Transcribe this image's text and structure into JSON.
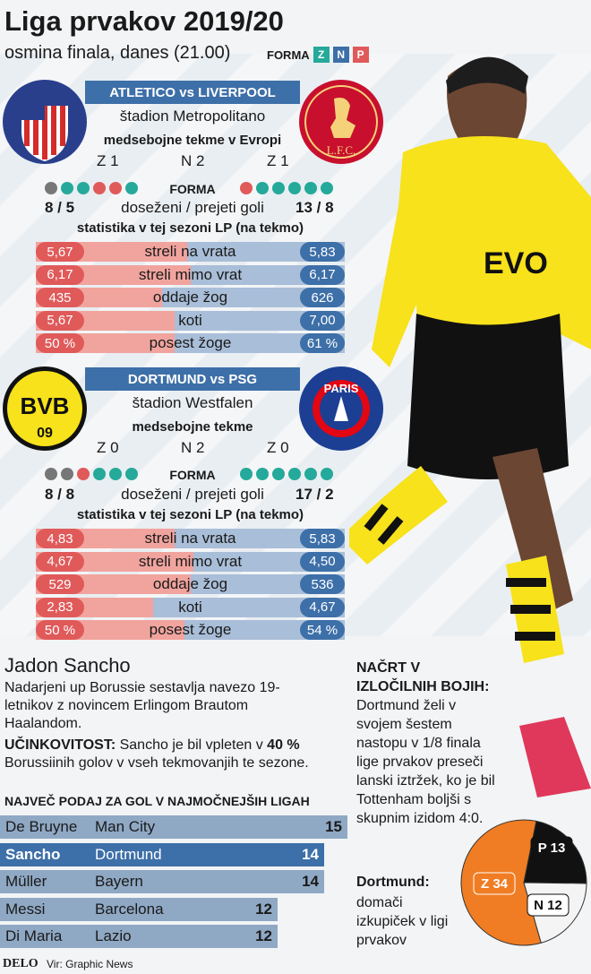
{
  "title": "Liga prvakov 2019/20",
  "subtitle": "osmina finala, danes (21.00)",
  "forma_key": {
    "label": "FORMA",
    "items": [
      "Z",
      "N",
      "P"
    ],
    "colors": [
      "#25a99a",
      "#3d6fa8",
      "#e05a5a"
    ]
  },
  "match1": {
    "header": "ATLETICO vs LIVERPOOL",
    "stadium": "štadion Metropolitano",
    "h2h_label": "medsebojne tekme v Evropi",
    "h2h": [
      "Z 1",
      "N 2",
      "Z 1"
    ],
    "forma_label": "FORMA",
    "left_form": [
      "gray",
      "green",
      "green",
      "red",
      "red",
      "green"
    ],
    "right_form": [
      "red",
      "green",
      "green",
      "green",
      "green",
      "green"
    ],
    "goals_left": "8 / 5",
    "goals_label": "doseženi / prejeti goli",
    "goals_right": "13 / 8",
    "stats_title": "statistika v tej sezoni LP (na tekmo)",
    "stats": [
      {
        "left": "5,67",
        "label": "streli na vrata",
        "right": "5,83",
        "lfrac": 0.49
      },
      {
        "left": "6,17",
        "label": "streli mimo vrat",
        "right": "6,17",
        "lfrac": 0.5
      },
      {
        "left": "435",
        "label": "oddaje žog",
        "right": "626",
        "lfrac": 0.41
      },
      {
        "left": "5,67",
        "label": "koti",
        "right": "7,00",
        "lfrac": 0.45
      },
      {
        "left": "50 %",
        "label": "posest žoge",
        "right": "61 %",
        "lfrac": 0.45
      }
    ]
  },
  "match2": {
    "header": "DORTMUND vs PSG",
    "stadium": "štadion Westfalen",
    "h2h_label": "medsebojne tekme",
    "h2h": [
      "Z 0",
      "N 2",
      "Z 0"
    ],
    "forma_label": "FORMA",
    "left_form": [
      "gray",
      "gray",
      "red",
      "green",
      "green",
      "green"
    ],
    "right_form": [
      "green",
      "green",
      "green",
      "green",
      "green",
      "green"
    ],
    "goals_left": "8 / 8",
    "goals_label": "doseženi / prejeti goli",
    "goals_right": "17 / 2",
    "stats_title": "statistika v tej sezoni LP (na tekmo)",
    "stats": [
      {
        "left": "4,83",
        "label": "streli na vrata",
        "right": "5,83",
        "lfrac": 0.45
      },
      {
        "left": "4,67",
        "label": "streli mimo vrat",
        "right": "4,50",
        "lfrac": 0.51
      },
      {
        "left": "529",
        "label": "oddaje žog",
        "right": "536",
        "lfrac": 0.5
      },
      {
        "left": "2,83",
        "label": "koti",
        "right": "4,67",
        "lfrac": 0.38
      },
      {
        "left": "50 %",
        "label": "posest žoge",
        "right": "54 %",
        "lfrac": 0.48
      }
    ]
  },
  "player": {
    "name": "Jadon Sancho",
    "intro": "Nadarjeni up Borussie sestavlja navezo 19-letnikov z novincem Erlingom Brautom Haalandom.",
    "eff_label": "UČINKOVITOST:",
    "eff_text_a": "Sancho je bil vpleten v",
    "eff_pct": "40 %",
    "eff_text_b": "Borussiinih golov v vseh tekmovanjih te sezone.",
    "rank_title": "NAJVEČ PODAJ ZA GOL V NAJMOČNEJŠIH LIGAH",
    "ranking": [
      {
        "name": "De Bruyne",
        "club": "Man City",
        "val": "15",
        "n": 15
      },
      {
        "name": "Sancho",
        "club": "Dortmund",
        "val": "14",
        "n": 14
      },
      {
        "name": "Müller",
        "club": "Bayern",
        "val": "14",
        "n": 14
      },
      {
        "name": "Messi",
        "club": "Barcelona",
        "val": "12",
        "n": 12
      },
      {
        "name": "Di Maria",
        "club": "Lazio",
        "val": "12",
        "n": 12
      }
    ]
  },
  "plan": {
    "label": "NAČRT V IZLOČILNIH BOJIH:",
    "text": "Dortmund želi v svojem šestem nastopu v 1/8 finala lige prvakov preseči lanski iztržek, ko je bil Tottenham boljši s skupnim izidom 4:0."
  },
  "dortmund_record": {
    "label": "Dortmund:",
    "text": "domači izkupiček v ligi prvakov",
    "slices": [
      {
        "label": "Z 34",
        "value": 34,
        "color": "#f07d23"
      },
      {
        "label": "P 13",
        "value": 13,
        "color": "#111111"
      },
      {
        "label": "N 12",
        "value": 12,
        "color": "#f4f4f4"
      }
    ]
  },
  "footer": {
    "brand": "DELO",
    "source": "Vir: Graphic News"
  }
}
